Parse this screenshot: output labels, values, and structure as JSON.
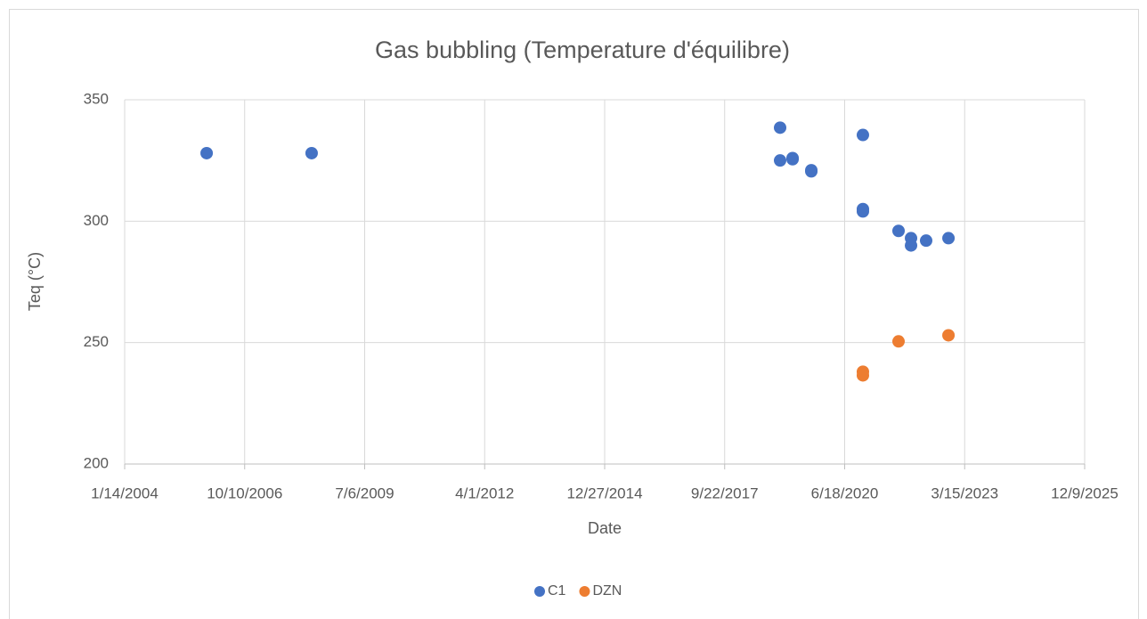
{
  "chart_data": {
    "type": "scatter",
    "title": "Gas bubbling (Temperature d'équilibre)",
    "x_label": "Date",
    "y_label": "Teq (°C)",
    "xlim": [
      38000,
      46000
    ],
    "xticks": [
      {
        "value": 38000,
        "label": "1/14/2004"
      },
      {
        "value": 39000,
        "label": "10/10/2006"
      },
      {
        "value": 40000,
        "label": "7/6/2009"
      },
      {
        "value": 41000,
        "label": "4/1/2012"
      },
      {
        "value": 42000,
        "label": "12/27/2014"
      },
      {
        "value": 43000,
        "label": "9/22/2017"
      },
      {
        "value": 44000,
        "label": "6/18/2020"
      },
      {
        "value": 45000,
        "label": "3/15/2023"
      },
      {
        "value": 46000,
        "label": "12/9/2025"
      }
    ],
    "ylim": [
      200,
      350
    ],
    "yticks": [
      200,
      250,
      300,
      350
    ],
    "grid": true,
    "legend": "bottom",
    "series": [
      {
        "name": "C1",
        "color": "#4472c4",
        "x": [
          38683,
          39558,
          43462,
          43462,
          43566,
          43566,
          43722,
          43722,
          44152,
          44152,
          44152,
          44449,
          44553,
          44553,
          44679,
          44865
        ],
        "values": [
          328,
          328,
          338.5,
          325,
          326,
          325.5,
          321,
          320.5,
          335.5,
          305,
          304,
          296,
          293,
          290,
          292,
          293
        ]
      },
      {
        "name": "DZN",
        "color": "#ed7d31",
        "x": [
          44152,
          44152,
          44449,
          44865
        ],
        "values": [
          238,
          236.5,
          250.5,
          253
        ]
      }
    ]
  }
}
